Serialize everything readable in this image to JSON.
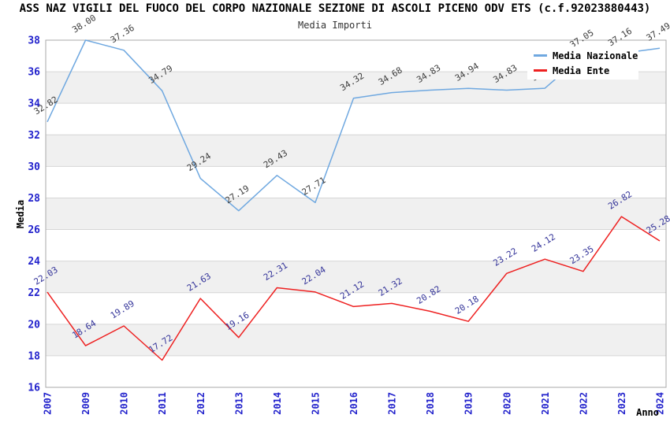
{
  "header": {
    "title": "ASS NAZ VIGILI DEL FUOCO DEL CORPO NAZIONALE SEZIONE DI ASCOLI PICENO ODV ETS (c.f.92023880443)",
    "subtitle": "Media Importi"
  },
  "legend": {
    "position": "top-right",
    "items": [
      "Media Nazionale",
      "Media Ente"
    ]
  },
  "colors": {
    "tick_label": "#2222cc",
    "axis_title": "#000000",
    "grid_line": "#d6d6d6",
    "plot_border": "#aaaaaa",
    "band_white": "#ffffff",
    "band_gray": "#f0f0f0",
    "national_line": "#6fa8e0",
    "national_label": "#3c3c3c",
    "ente_line": "#ee2020",
    "ente_label": "#333399"
  },
  "chart_data": {
    "type": "line",
    "title": "ASS NAZ VIGILI DEL FUOCO DEL CORPO NAZIONALE SEZIONE DI ASCOLI PICENO ODV ETS (c.f.92023880443)",
    "subtitle": "Media Importi",
    "xlabel": "Anno",
    "ylabel": "Media",
    "ylim": [
      16,
      38
    ],
    "ytick_step": 2,
    "grid": true,
    "background_bands": true,
    "legend_position": "top-right",
    "categories": [
      "2007",
      "2009",
      "2010",
      "2011",
      "2012",
      "2013",
      "2014",
      "2015",
      "2016",
      "2017",
      "2018",
      "2019",
      "2020",
      "2021",
      "2022",
      "2023",
      "2024"
    ],
    "series": [
      {
        "name": "Media Nazionale",
        "color": "#6fa8e0",
        "label_color": "#3c3c3c",
        "values": [
          32.82,
          38.0,
          37.36,
          34.79,
          29.24,
          27.19,
          29.43,
          27.71,
          34.32,
          34.68,
          34.83,
          34.94,
          34.83,
          34.95,
          37.05,
          37.16,
          37.49
        ]
      },
      {
        "name": "Media Ente",
        "color": "#ee2020",
        "label_color": "#333399",
        "values": [
          22.03,
          18.64,
          19.89,
          17.72,
          21.63,
          19.16,
          22.31,
          22.04,
          21.12,
          21.32,
          20.82,
          20.18,
          23.22,
          24.12,
          23.35,
          26.82,
          25.28
        ]
      }
    ]
  }
}
